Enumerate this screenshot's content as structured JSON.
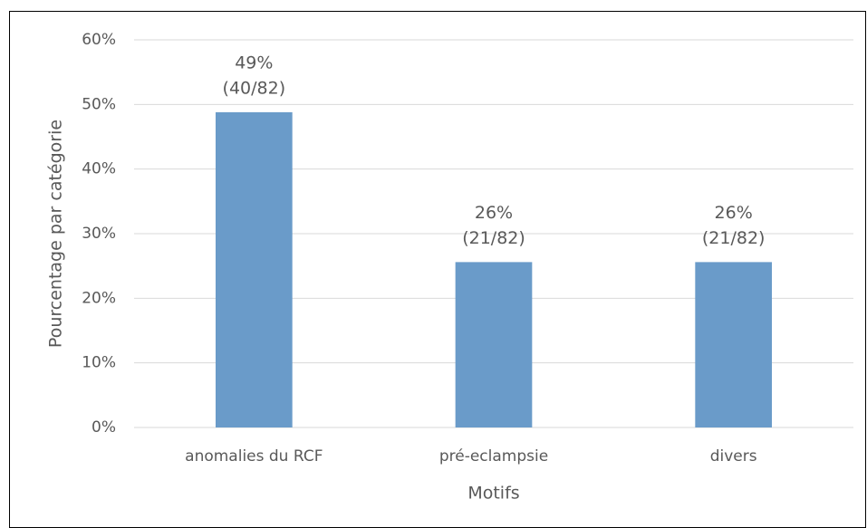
{
  "chart_data": {
    "type": "bar",
    "categories": [
      "anomalies du RCF",
      "pré-eclampsie",
      "divers"
    ],
    "values": [
      48.8,
      25.6,
      25.6
    ],
    "value_labels": [
      "49%",
      "26%",
      "26%"
    ],
    "count_labels": [
      "(40/82)",
      "(21/82)",
      "(21/82)"
    ],
    "color": "#6a9bc9",
    "xlabel": "Motifs",
    "ylabel": "Pourcentage par catégorie",
    "ylim": [
      0,
      60
    ],
    "yticks": [
      {
        "value": 0,
        "label": "0%"
      },
      {
        "value": 10,
        "label": "10%"
      },
      {
        "value": 20,
        "label": "20%"
      },
      {
        "value": 30,
        "label": "30%"
      },
      {
        "value": 40,
        "label": "40%"
      },
      {
        "value": 50,
        "label": "50%"
      },
      {
        "value": 60,
        "label": "60%"
      }
    ],
    "grid": true
  }
}
